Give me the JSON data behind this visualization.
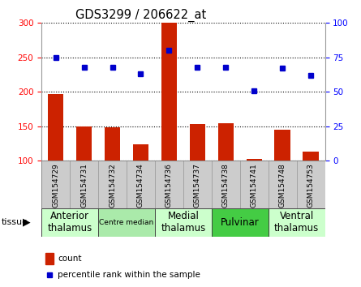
{
  "title": "GDS3299 / 206622_at",
  "samples": [
    "GSM154729",
    "GSM154731",
    "GSM154732",
    "GSM154734",
    "GSM154736",
    "GSM154737",
    "GSM154738",
    "GSM154741",
    "GSM154748",
    "GSM154753"
  ],
  "counts": [
    197,
    150,
    149,
    124,
    300,
    153,
    155,
    103,
    145,
    113
  ],
  "percentile_ranks": [
    75,
    68,
    68,
    63,
    80,
    68,
    68,
    51,
    67,
    62
  ],
  "ylim_left": [
    100,
    300
  ],
  "ylim_right": [
    0,
    100
  ],
  "yticks_left": [
    100,
    150,
    200,
    250,
    300
  ],
  "yticks_right": [
    0,
    25,
    50,
    75,
    100
  ],
  "bar_color": "#cc2200",
  "dot_color": "#0000cc",
  "tissue_groups": [
    {
      "label": "Anterior\nthalamus",
      "start": 0,
      "end": 1,
      "color": "#ccffcc",
      "fontsize": 8.5
    },
    {
      "label": "Centre median",
      "start": 2,
      "end": 3,
      "color": "#aaeaaa",
      "fontsize": 6.5
    },
    {
      "label": "Medial\nthalamus",
      "start": 4,
      "end": 5,
      "color": "#ccffcc",
      "fontsize": 8.5
    },
    {
      "label": "Pulvinar",
      "start": 6,
      "end": 7,
      "color": "#44cc44",
      "fontsize": 8.5
    },
    {
      "label": "Ventral\nthalamus",
      "start": 8,
      "end": 9,
      "color": "#ccffcc",
      "fontsize": 8.5
    }
  ],
  "bar_width": 0.55,
  "title_fontsize": 10.5,
  "tick_label_fontsize": 7.5,
  "sample_label_fontsize": 6.5,
  "label_box_color": "#cccccc",
  "label_box_edge": "#999999"
}
